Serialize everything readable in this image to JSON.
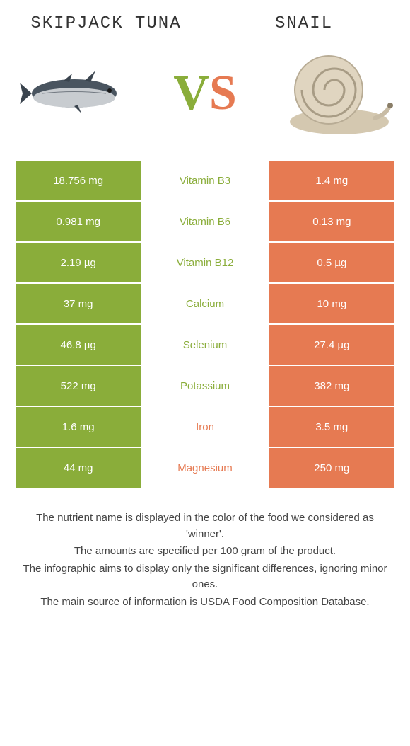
{
  "header": {
    "left_title": "Skipjack tuna",
    "right_title": "Snail",
    "vs_v": "V",
    "vs_s": "S"
  },
  "colors": {
    "left": "#8aad3a",
    "right": "#e67a52",
    "white": "#ffffff",
    "text": "#333333"
  },
  "table": {
    "type": "table",
    "rows": [
      {
        "left": "18.756 mg",
        "label": "Vitamin B3",
        "right": "1.4 mg",
        "winner": "left"
      },
      {
        "left": "0.981 mg",
        "label": "Vitamin B6",
        "right": "0.13 mg",
        "winner": "left"
      },
      {
        "left": "2.19 µg",
        "label": "Vitamin B12",
        "right": "0.5 µg",
        "winner": "left"
      },
      {
        "left": "37 mg",
        "label": "Calcium",
        "right": "10 mg",
        "winner": "left"
      },
      {
        "left": "46.8 µg",
        "label": "Selenium",
        "right": "27.4 µg",
        "winner": "left"
      },
      {
        "left": "522 mg",
        "label": "Potassium",
        "right": "382 mg",
        "winner": "left"
      },
      {
        "left": "1.6 mg",
        "label": "Iron",
        "right": "3.5 mg",
        "winner": "right"
      },
      {
        "left": "44 mg",
        "label": "Magnesium",
        "right": "250 mg",
        "winner": "right"
      }
    ]
  },
  "footer": {
    "line1": "The nutrient name is displayed in the color of the food we considered as 'winner'.",
    "line2": "The amounts are specified per 100 gram of the product.",
    "line3": "The infographic aims to display only the significant differences, ignoring minor ones.",
    "line4": "The main source of information is USDA Food Composition Database."
  }
}
